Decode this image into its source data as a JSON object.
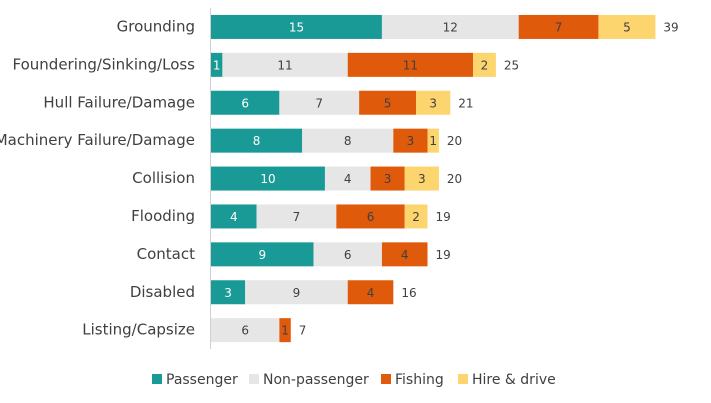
{
  "chart_data": {
    "type": "stacked-barh",
    "categories": [
      "Grounding",
      "Foundering/Sinking/Loss",
      "Hull Failure/Damage",
      "Machinery Failure/Damage",
      "Collision",
      "Flooding",
      "Contact",
      "Disabled",
      "Listing/Capsize"
    ],
    "series": [
      {
        "name": "Passenger",
        "color": "#1a9a96",
        "values": [
          15,
          1,
          6,
          8,
          10,
          4,
          9,
          3,
          null
        ]
      },
      {
        "name": "Non-passenger",
        "color": "#e6e6e6",
        "values": [
          12,
          11,
          7,
          8,
          4,
          7,
          6,
          9,
          6
        ]
      },
      {
        "name": "Fishing",
        "color": "#e05a0c",
        "values": [
          7,
          11,
          5,
          3,
          3,
          6,
          4,
          4,
          1
        ]
      },
      {
        "name": "Hire & drive",
        "color": "#fcd56f",
        "values": [
          5,
          2,
          3,
          1,
          3,
          2,
          null,
          null,
          null
        ]
      }
    ],
    "totals": [
      39,
      25,
      21,
      20,
      20,
      19,
      19,
      16,
      7
    ],
    "xlim": [
      0,
      43
    ],
    "legend": "bottom"
  }
}
